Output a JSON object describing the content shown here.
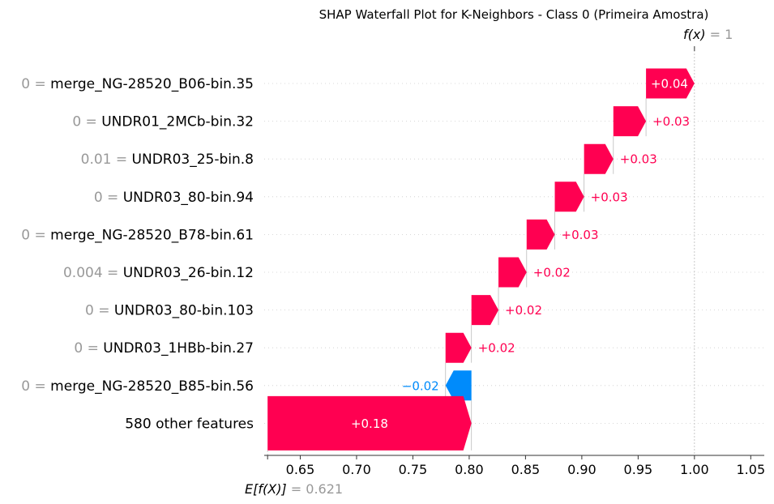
{
  "chart_data": {
    "type": "waterfall",
    "title": "SHAP Waterfall Plot for K-Neighbors - Class 0 (Primeira Amostra)",
    "base_value": 0.621,
    "base_label": "E[f(X)]",
    "base_value_text": "= 0.621",
    "output_value": 1,
    "output_label": "f(x)",
    "output_value_text": "= 1",
    "xlim": [
      0.618,
      1.062
    ],
    "xticks": [
      0.65,
      0.7,
      0.75,
      0.8,
      0.85,
      0.9,
      0.95,
      1.0,
      1.05
    ],
    "xtick_labels": [
      "0.65",
      "0.70",
      "0.75",
      "0.80",
      "0.85",
      "0.90",
      "0.95",
      "1.00",
      "1.05"
    ],
    "features": [
      {
        "value_text": "0 =",
        "name": "merge_NG-28520_B06-bin.35",
        "start": 0.957,
        "end": 1.0,
        "label": "+0.04"
      },
      {
        "value_text": "0 =",
        "name": "UNDR01_2MCb-bin.32",
        "start": 0.928,
        "end": 0.957,
        "label": "+0.03"
      },
      {
        "value_text": "0.01 =",
        "name": "UNDR03_25-bin.8",
        "start": 0.902,
        "end": 0.928,
        "label": "+0.03"
      },
      {
        "value_text": "0 =",
        "name": "UNDR03_80-bin.94",
        "start": 0.876,
        "end": 0.902,
        "label": "+0.03"
      },
      {
        "value_text": "0 =",
        "name": "merge_NG-28520_B78-bin.61",
        "start": 0.851,
        "end": 0.876,
        "label": "+0.03"
      },
      {
        "value_text": "0.004 =",
        "name": "UNDR03_26-bin.12",
        "start": 0.826,
        "end": 0.851,
        "label": "+0.02"
      },
      {
        "value_text": "0 =",
        "name": "UNDR03_80-bin.103",
        "start": 0.802,
        "end": 0.826,
        "label": "+0.02"
      },
      {
        "value_text": "0 =",
        "name": "UNDR03_1HBb-bin.27",
        "start": 0.779,
        "end": 0.802,
        "label": "+0.02"
      },
      {
        "value_text": "0 =",
        "name": "merge_NG-28520_B85-bin.56",
        "start": 0.802,
        "end": 0.779,
        "label": "−0.02"
      },
      {
        "value_text": "",
        "name": "580 other features",
        "start": 0.621,
        "end": 0.802,
        "label": "+0.18"
      }
    ],
    "positive_color": "#ff0051",
    "negative_color": "#008bfb",
    "grid": false
  }
}
